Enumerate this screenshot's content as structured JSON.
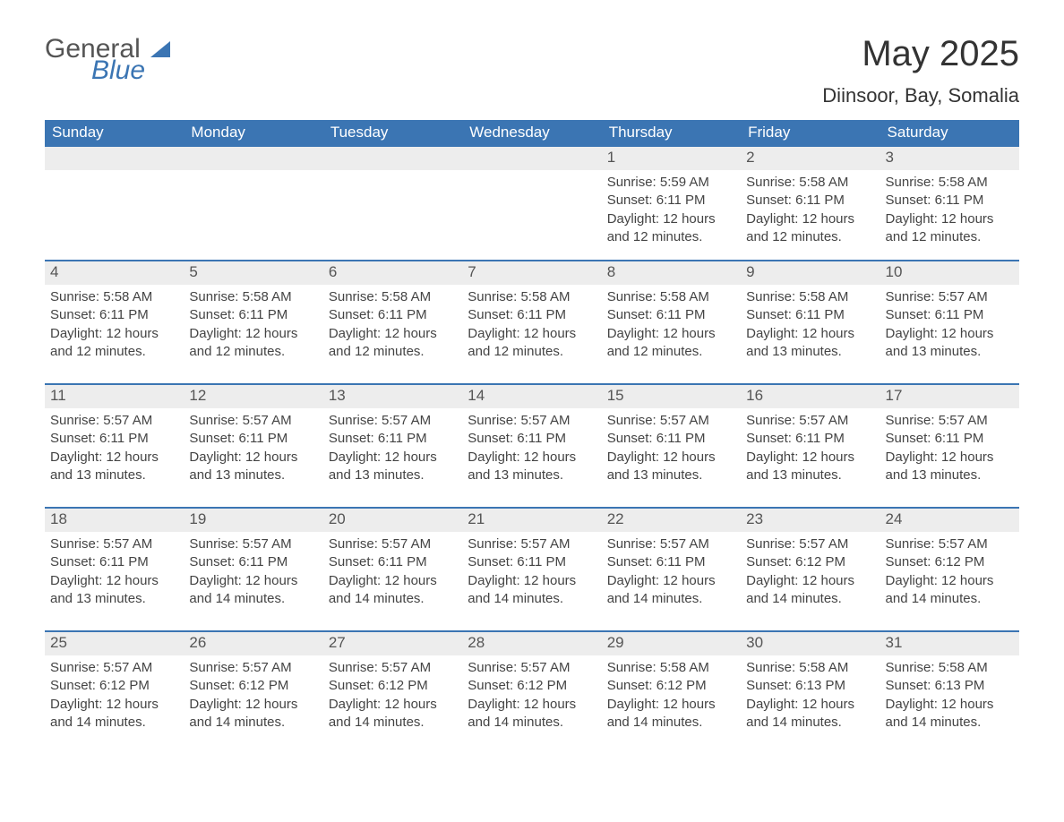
{
  "brand": {
    "line1": "General",
    "line2": "Blue"
  },
  "title": "May 2025",
  "location": "Diinsoor, Bay, Somalia",
  "colors": {
    "header_bg": "#3b75b3",
    "header_text": "#ffffff",
    "daynum_bg": "#ededed",
    "row_border": "#3b75b3",
    "body_text": "#444444",
    "title_text": "#333333",
    "page_bg": "#ffffff"
  },
  "day_headers": [
    "Sunday",
    "Monday",
    "Tuesday",
    "Wednesday",
    "Thursday",
    "Friday",
    "Saturday"
  ],
  "weeks": [
    [
      {
        "day": "",
        "sunrise": "",
        "sunset": "",
        "daylight": ""
      },
      {
        "day": "",
        "sunrise": "",
        "sunset": "",
        "daylight": ""
      },
      {
        "day": "",
        "sunrise": "",
        "sunset": "",
        "daylight": ""
      },
      {
        "day": "",
        "sunrise": "",
        "sunset": "",
        "daylight": ""
      },
      {
        "day": "1",
        "sunrise": "Sunrise: 5:59 AM",
        "sunset": "Sunset: 6:11 PM",
        "daylight": "Daylight: 12 hours and 12 minutes."
      },
      {
        "day": "2",
        "sunrise": "Sunrise: 5:58 AM",
        "sunset": "Sunset: 6:11 PM",
        "daylight": "Daylight: 12 hours and 12 minutes."
      },
      {
        "day": "3",
        "sunrise": "Sunrise: 5:58 AM",
        "sunset": "Sunset: 6:11 PM",
        "daylight": "Daylight: 12 hours and 12 minutes."
      }
    ],
    [
      {
        "day": "4",
        "sunrise": "Sunrise: 5:58 AM",
        "sunset": "Sunset: 6:11 PM",
        "daylight": "Daylight: 12 hours and 12 minutes."
      },
      {
        "day": "5",
        "sunrise": "Sunrise: 5:58 AM",
        "sunset": "Sunset: 6:11 PM",
        "daylight": "Daylight: 12 hours and 12 minutes."
      },
      {
        "day": "6",
        "sunrise": "Sunrise: 5:58 AM",
        "sunset": "Sunset: 6:11 PM",
        "daylight": "Daylight: 12 hours and 12 minutes."
      },
      {
        "day": "7",
        "sunrise": "Sunrise: 5:58 AM",
        "sunset": "Sunset: 6:11 PM",
        "daylight": "Daylight: 12 hours and 12 minutes."
      },
      {
        "day": "8",
        "sunrise": "Sunrise: 5:58 AM",
        "sunset": "Sunset: 6:11 PM",
        "daylight": "Daylight: 12 hours and 12 minutes."
      },
      {
        "day": "9",
        "sunrise": "Sunrise: 5:58 AM",
        "sunset": "Sunset: 6:11 PM",
        "daylight": "Daylight: 12 hours and 13 minutes."
      },
      {
        "day": "10",
        "sunrise": "Sunrise: 5:57 AM",
        "sunset": "Sunset: 6:11 PM",
        "daylight": "Daylight: 12 hours and 13 minutes."
      }
    ],
    [
      {
        "day": "11",
        "sunrise": "Sunrise: 5:57 AM",
        "sunset": "Sunset: 6:11 PM",
        "daylight": "Daylight: 12 hours and 13 minutes."
      },
      {
        "day": "12",
        "sunrise": "Sunrise: 5:57 AM",
        "sunset": "Sunset: 6:11 PM",
        "daylight": "Daylight: 12 hours and 13 minutes."
      },
      {
        "day": "13",
        "sunrise": "Sunrise: 5:57 AM",
        "sunset": "Sunset: 6:11 PM",
        "daylight": "Daylight: 12 hours and 13 minutes."
      },
      {
        "day": "14",
        "sunrise": "Sunrise: 5:57 AM",
        "sunset": "Sunset: 6:11 PM",
        "daylight": "Daylight: 12 hours and 13 minutes."
      },
      {
        "day": "15",
        "sunrise": "Sunrise: 5:57 AM",
        "sunset": "Sunset: 6:11 PM",
        "daylight": "Daylight: 12 hours and 13 minutes."
      },
      {
        "day": "16",
        "sunrise": "Sunrise: 5:57 AM",
        "sunset": "Sunset: 6:11 PM",
        "daylight": "Daylight: 12 hours and 13 minutes."
      },
      {
        "day": "17",
        "sunrise": "Sunrise: 5:57 AM",
        "sunset": "Sunset: 6:11 PM",
        "daylight": "Daylight: 12 hours and 13 minutes."
      }
    ],
    [
      {
        "day": "18",
        "sunrise": "Sunrise: 5:57 AM",
        "sunset": "Sunset: 6:11 PM",
        "daylight": "Daylight: 12 hours and 13 minutes."
      },
      {
        "day": "19",
        "sunrise": "Sunrise: 5:57 AM",
        "sunset": "Sunset: 6:11 PM",
        "daylight": "Daylight: 12 hours and 14 minutes."
      },
      {
        "day": "20",
        "sunrise": "Sunrise: 5:57 AM",
        "sunset": "Sunset: 6:11 PM",
        "daylight": "Daylight: 12 hours and 14 minutes."
      },
      {
        "day": "21",
        "sunrise": "Sunrise: 5:57 AM",
        "sunset": "Sunset: 6:11 PM",
        "daylight": "Daylight: 12 hours and 14 minutes."
      },
      {
        "day": "22",
        "sunrise": "Sunrise: 5:57 AM",
        "sunset": "Sunset: 6:11 PM",
        "daylight": "Daylight: 12 hours and 14 minutes."
      },
      {
        "day": "23",
        "sunrise": "Sunrise: 5:57 AM",
        "sunset": "Sunset: 6:12 PM",
        "daylight": "Daylight: 12 hours and 14 minutes."
      },
      {
        "day": "24",
        "sunrise": "Sunrise: 5:57 AM",
        "sunset": "Sunset: 6:12 PM",
        "daylight": "Daylight: 12 hours and 14 minutes."
      }
    ],
    [
      {
        "day": "25",
        "sunrise": "Sunrise: 5:57 AM",
        "sunset": "Sunset: 6:12 PM",
        "daylight": "Daylight: 12 hours and 14 minutes."
      },
      {
        "day": "26",
        "sunrise": "Sunrise: 5:57 AM",
        "sunset": "Sunset: 6:12 PM",
        "daylight": "Daylight: 12 hours and 14 minutes."
      },
      {
        "day": "27",
        "sunrise": "Sunrise: 5:57 AM",
        "sunset": "Sunset: 6:12 PM",
        "daylight": "Daylight: 12 hours and 14 minutes."
      },
      {
        "day": "28",
        "sunrise": "Sunrise: 5:57 AM",
        "sunset": "Sunset: 6:12 PM",
        "daylight": "Daylight: 12 hours and 14 minutes."
      },
      {
        "day": "29",
        "sunrise": "Sunrise: 5:58 AM",
        "sunset": "Sunset: 6:12 PM",
        "daylight": "Daylight: 12 hours and 14 minutes."
      },
      {
        "day": "30",
        "sunrise": "Sunrise: 5:58 AM",
        "sunset": "Sunset: 6:13 PM",
        "daylight": "Daylight: 12 hours and 14 minutes."
      },
      {
        "day": "31",
        "sunrise": "Sunrise: 5:58 AM",
        "sunset": "Sunset: 6:13 PM",
        "daylight": "Daylight: 12 hours and 14 minutes."
      }
    ]
  ]
}
